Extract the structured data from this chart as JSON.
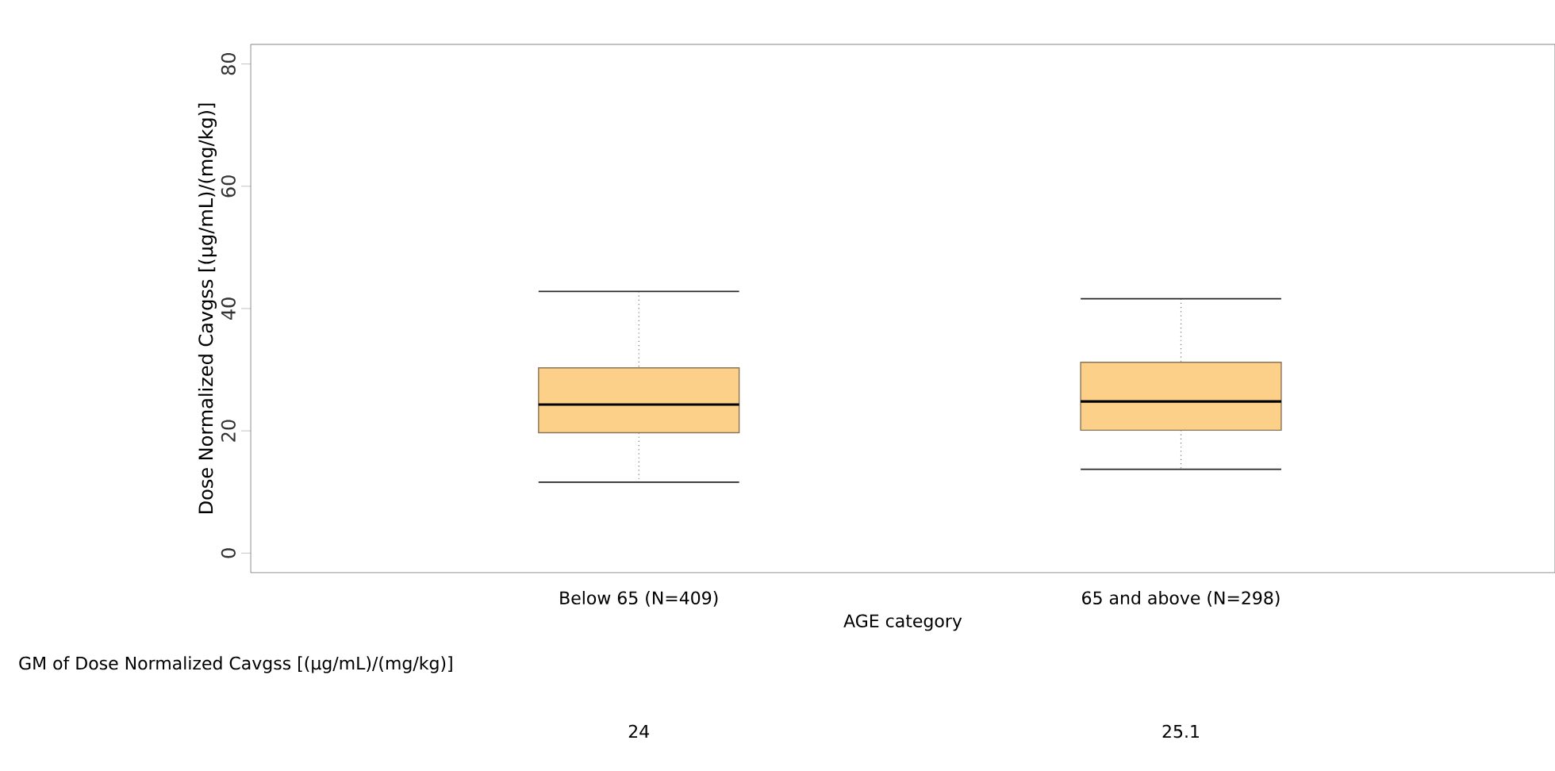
{
  "chart_data": {
    "type": "box",
    "categories": [
      "Below 65 (N=409)",
      "65 and above (N=298)"
    ],
    "boxes": [
      {
        "low": 11.6,
        "q1": 19.7,
        "median": 24.3,
        "q3": 30.3,
        "high": 42.8
      },
      {
        "low": 13.7,
        "q1": 20.1,
        "median": 24.8,
        "q3": 31.2,
        "high": 41.6
      }
    ],
    "color": "#fdd08a",
    "xlabel": "AGE category",
    "ylabel": "Dose Normalized Cavgss [(µg/mL)/(mg/kg)]",
    "ylim": [
      -3.2,
      83.2
    ],
    "yticks": [
      0,
      20,
      40,
      60,
      80
    ],
    "annotations": [
      "GM of Dose Normalized Cavgss [(µg/mL)/(mg/kg)]",
      "24",
      "25.1"
    ]
  }
}
